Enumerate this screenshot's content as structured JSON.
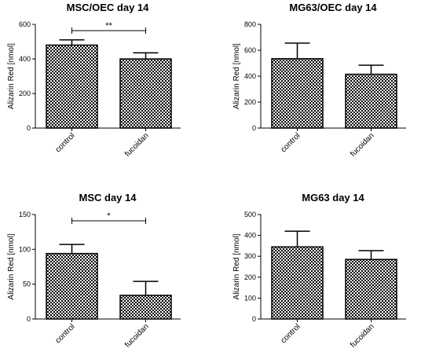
{
  "chart_data": [
    {
      "type": "bar",
      "title": "MSC/OEC day 14",
      "ylabel": "Alizarin Red [nmol]",
      "categories": [
        "control",
        "fucoidan"
      ],
      "values": [
        480,
        400
      ],
      "errors": [
        30,
        35
      ],
      "ylim": [
        0,
        600
      ],
      "yticks": [
        0,
        200,
        400,
        600
      ],
      "significance": "**"
    },
    {
      "type": "bar",
      "title": "MG63/OEC day 14",
      "ylabel": "Alizarin Red [nmol]",
      "categories": [
        "control",
        "fucoidan"
      ],
      "values": [
        535,
        415
      ],
      "errors": [
        120,
        70
      ],
      "ylim": [
        0,
        800
      ],
      "yticks": [
        0,
        200,
        400,
        600,
        800
      ],
      "significance": ""
    },
    {
      "type": "bar",
      "title": "MSC day 14",
      "ylabel": "Alizarin Red [nmol]",
      "categories": [
        "control",
        "fucoidan"
      ],
      "values": [
        94,
        34
      ],
      "errors": [
        13,
        20
      ],
      "ylim": [
        0,
        150
      ],
      "yticks": [
        0,
        50,
        100,
        150
      ],
      "significance": "*"
    },
    {
      "type": "bar",
      "title": "MG63 day 14",
      "ylabel": "Alizarin Red [nmol]",
      "categories": [
        "control",
        "fucoidan"
      ],
      "values": [
        345,
        285
      ],
      "errors": [
        75,
        42
      ],
      "ylim": [
        0,
        500
      ],
      "yticks": [
        0,
        100,
        200,
        300,
        400,
        500
      ],
      "significance": ""
    }
  ]
}
